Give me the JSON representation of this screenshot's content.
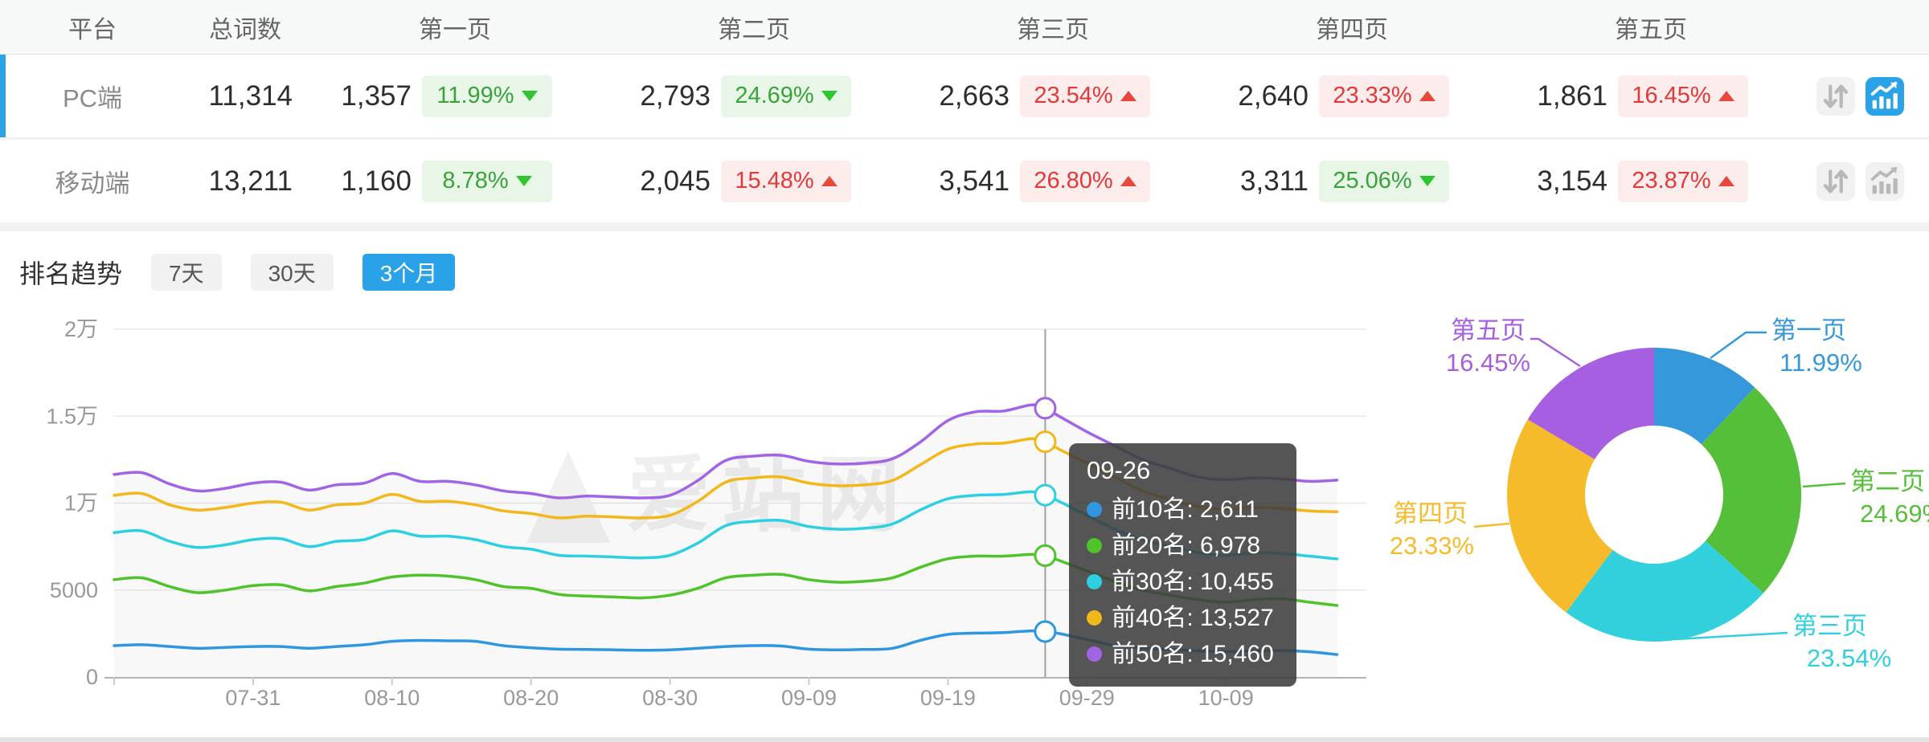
{
  "table": {
    "headers": [
      "平台",
      "总词数",
      "第一页",
      "第二页",
      "第三页",
      "第四页",
      "第五页"
    ],
    "rows": [
      {
        "platform": "PC端",
        "total": "11,314",
        "active": true,
        "chart_active": true,
        "pages": [
          {
            "count": "1,357",
            "pct": "11.99%",
            "color": "green",
            "arrow": "down"
          },
          {
            "count": "2,793",
            "pct": "24.69%",
            "color": "green",
            "arrow": "down"
          },
          {
            "count": "2,663",
            "pct": "23.54%",
            "color": "red",
            "arrow": "up"
          },
          {
            "count": "2,640",
            "pct": "23.33%",
            "color": "red",
            "arrow": "up"
          },
          {
            "count": "1,861",
            "pct": "16.45%",
            "color": "red",
            "arrow": "up"
          }
        ]
      },
      {
        "platform": "移动端",
        "total": "13,211",
        "active": false,
        "chart_active": false,
        "pages": [
          {
            "count": "1,160",
            "pct": "8.78%",
            "color": "green",
            "arrow": "down"
          },
          {
            "count": "2,045",
            "pct": "15.48%",
            "color": "red",
            "arrow": "up"
          },
          {
            "count": "3,541",
            "pct": "26.80%",
            "color": "red",
            "arrow": "up"
          },
          {
            "count": "3,311",
            "pct": "25.06%",
            "color": "green",
            "arrow": "down"
          },
          {
            "count": "3,154",
            "pct": "23.87%",
            "color": "red",
            "arrow": "up"
          }
        ]
      }
    ]
  },
  "trend": {
    "title": "排名趋势",
    "buttons": [
      {
        "label": "7天",
        "active": false
      },
      {
        "label": "30天",
        "active": false
      },
      {
        "label": "3个月",
        "active": true
      }
    ]
  },
  "watermark": "爱站网",
  "tooltip": {
    "date": "09-26",
    "rows": [
      {
        "label": "前10名",
        "value": "2,611"
      },
      {
        "label": "前20名",
        "value": "6,978"
      },
      {
        "label": "前30名",
        "value": "10,455"
      },
      {
        "label": "前40名",
        "value": "13,527"
      },
      {
        "label": "前50名",
        "value": "15,460"
      }
    ]
  },
  "colors": {
    "accent_blue": "#29a2e8",
    "badge_green_text": "#3ba23b",
    "badge_green_bg": "#e8f6e8",
    "badge_green_arrow": "#2ec52e",
    "badge_red_text": "#e23a3a",
    "badge_red_bg": "#fdecec",
    "badge_red_arrow": "#e7483c"
  },
  "chart_data": [
    {
      "type": "line",
      "title": "排名趋势 (3个月)",
      "grid": true,
      "legend_position": "none",
      "ylim": [
        0,
        20000
      ],
      "y_axis_ticks": [
        "0",
        "5000",
        "1万",
        "1.5万",
        "2万"
      ],
      "x_axis_ticks": [
        "07-31",
        "08-10",
        "08-20",
        "08-30",
        "09-09",
        "09-19",
        "09-29",
        "10-09"
      ],
      "x_tick_day_index": [
        10,
        20,
        30,
        40,
        50,
        60,
        70,
        80
      ],
      "x_day_index": [
        0,
        2,
        4,
        6,
        8,
        10,
        12,
        14,
        16,
        18,
        20,
        22,
        24,
        26,
        28,
        30,
        32,
        34,
        36,
        38,
        40,
        42,
        44,
        46,
        48,
        50,
        52,
        54,
        56,
        58,
        60,
        62,
        64,
        66,
        67,
        68,
        70,
        72,
        74,
        76,
        78,
        80,
        82,
        84,
        86,
        88
      ],
      "crosshair": {
        "day_index": 67,
        "date": "09-26"
      },
      "series": [
        {
          "name": "前10名",
          "color": "#2f97e0",
          "values": [
            1800,
            1850,
            1750,
            1650,
            1700,
            1750,
            1750,
            1650,
            1750,
            1850,
            2050,
            2100,
            2080,
            2050,
            1800,
            1680,
            1600,
            1580,
            1560,
            1540,
            1560,
            1650,
            1750,
            1800,
            1780,
            1600,
            1560,
            1580,
            1650,
            2100,
            2450,
            2520,
            2550,
            2650,
            2611,
            2500,
            2150,
            1800,
            1650,
            1580,
            1500,
            1450,
            1500,
            1520,
            1450,
            1290
          ]
        },
        {
          "name": "前20名",
          "color": "#4fc32a",
          "values": [
            5600,
            5700,
            5200,
            4850,
            5000,
            5250,
            5300,
            4950,
            5200,
            5400,
            5750,
            5850,
            5800,
            5600,
            5200,
            5100,
            4750,
            4650,
            4600,
            4550,
            4700,
            5100,
            5700,
            5850,
            5900,
            5600,
            5450,
            5500,
            5700,
            6300,
            6800,
            6950,
            6950,
            7050,
            6978,
            6700,
            6100,
            5500,
            5000,
            4700,
            4450,
            4300,
            4450,
            4500,
            4300,
            4110
          ]
        },
        {
          "name": "前30名",
          "color": "#2dd0e2",
          "values": [
            8300,
            8400,
            7800,
            7450,
            7600,
            7900,
            7950,
            7500,
            7800,
            7900,
            8400,
            8100,
            8100,
            7900,
            7500,
            7350,
            7000,
            6950,
            6900,
            6850,
            7000,
            7700,
            8700,
            8950,
            9000,
            8650,
            8500,
            8550,
            8800,
            9600,
            10250,
            10450,
            10500,
            10650,
            10455,
            10100,
            9300,
            8500,
            7900,
            7500,
            7150,
            7000,
            7150,
            7100,
            6950,
            6790
          ]
        },
        {
          "name": "前40名",
          "color": "#f2b719",
          "values": [
            10450,
            10550,
            9900,
            9600,
            9750,
            10000,
            10050,
            9600,
            9900,
            10000,
            10500,
            10100,
            10100,
            9900,
            9550,
            9400,
            9150,
            9250,
            9200,
            9150,
            9300,
            10100,
            11200,
            11450,
            11500,
            11150,
            11000,
            11050,
            11300,
            12200,
            13100,
            13400,
            13450,
            13700,
            13527,
            13100,
            12300,
            11500,
            10700,
            10200,
            9800,
            9650,
            9750,
            9700,
            9550,
            9500
          ]
        },
        {
          "name": "前50名",
          "color": "#a164e5",
          "values": [
            11650,
            11750,
            11100,
            10700,
            10850,
            11150,
            11200,
            10750,
            11050,
            11150,
            11700,
            11250,
            11250,
            11050,
            10700,
            10550,
            10300,
            10400,
            10350,
            10300,
            10450,
            11300,
            12450,
            12700,
            12750,
            12400,
            12250,
            12300,
            12550,
            13500,
            14750,
            15250,
            15300,
            15650,
            15460,
            15000,
            14100,
            13300,
            12500,
            12000,
            11500,
            11350,
            11450,
            11400,
            11250,
            11320
          ]
        }
      ]
    },
    {
      "type": "pie",
      "subtype": "donut",
      "categories": [
        "第一页",
        "第二页",
        "第三页",
        "第四页",
        "第五页"
      ],
      "values": [
        11.99,
        24.69,
        23.54,
        23.33,
        16.45
      ],
      "unit": "%",
      "colors": [
        "#3598db",
        "#55bf3a",
        "#32cfdd",
        "#f5bb2b",
        "#a75fe2"
      ],
      "inner_radius_ratio": 0.47,
      "legend_position": "labels-with-leader-lines"
    }
  ]
}
